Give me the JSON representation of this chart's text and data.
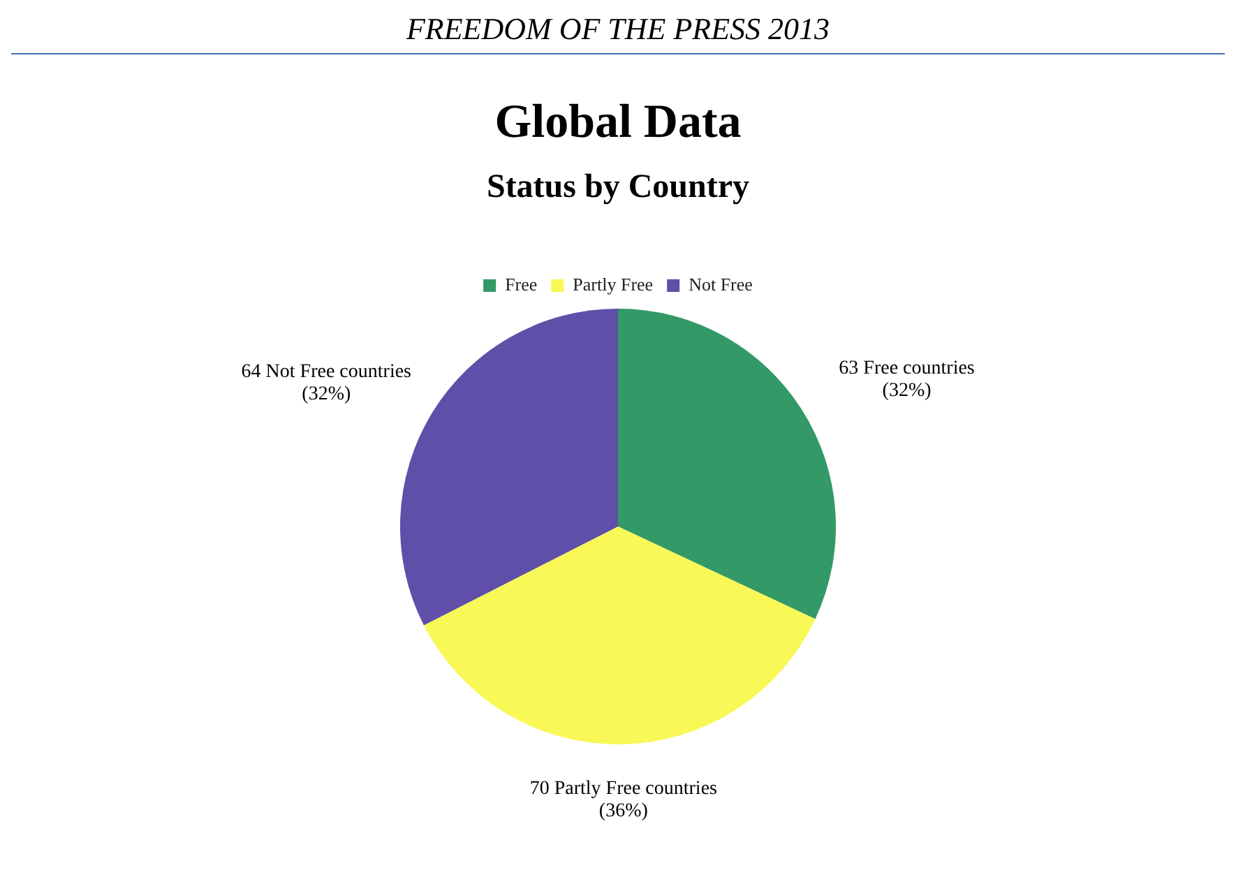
{
  "chart_data": {
    "type": "pie",
    "title": "Global Data",
    "subtitle": "Status by Country",
    "annotations": [
      "FREEDOM OF THE PRESS 2013"
    ],
    "categories": [
      "Free",
      "Partly Free",
      "Not Free"
    ],
    "values": [
      63,
      70,
      64
    ],
    "colors": [
      "#339966",
      "#f8f857",
      "#5f4fa8"
    ],
    "value_labels": [
      "63 Free countries (32%)",
      "70 Partly Free countries (36%)",
      "64 Not Free countries (32%)"
    ],
    "legend": "top"
  }
}
